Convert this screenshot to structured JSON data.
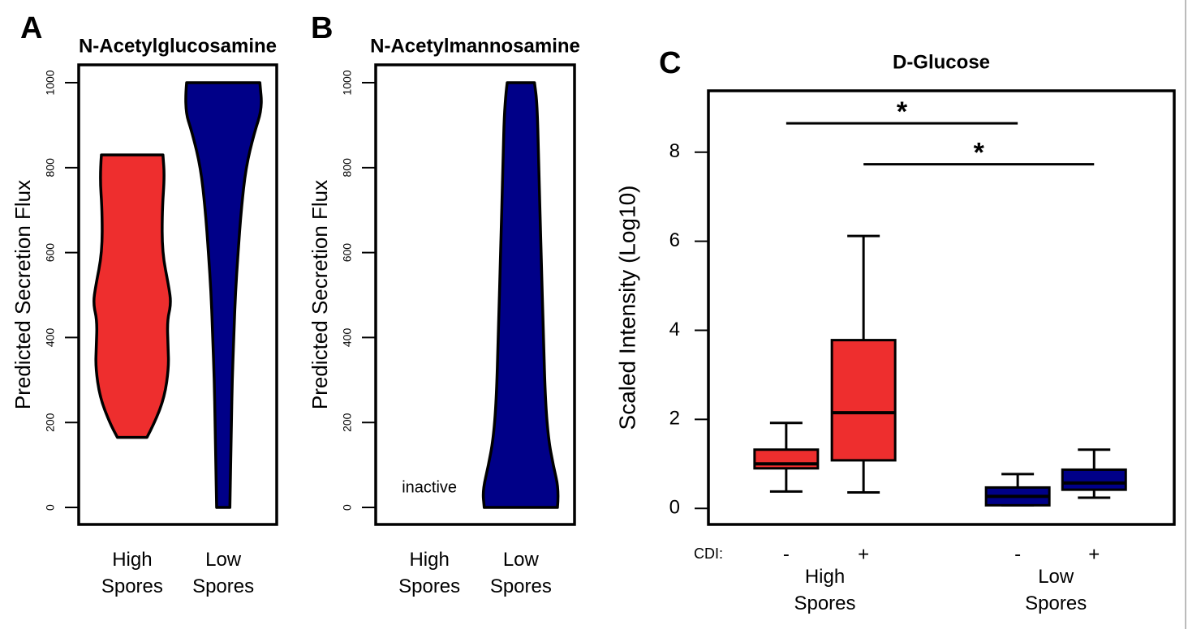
{
  "panel_labels": [
    "A",
    "B",
    "C"
  ],
  "chart_data": [
    {
      "type": "violin",
      "title": "N-Acetylglucosamine",
      "ylabel": "Predicted Secretion Flux",
      "ylim": [
        -40,
        1042
      ],
      "yticks": [
        0,
        200,
        400,
        600,
        800,
        1000
      ],
      "categories": [
        "High Spores",
        "Low Spores"
      ],
      "violins": [
        {
          "color": "#ee2e2e",
          "profile_y": [
            165,
            200,
            260,
            330,
            380,
            440,
            480,
            520,
            600,
            700,
            780,
            830
          ],
          "profile_width": [
            0.38,
            0.58,
            0.83,
            0.94,
            0.92,
            0.9,
            1,
            0.94,
            0.77,
            0.77,
            0.83,
            0.79
          ]
        },
        {
          "color": "#000088",
          "profile_y": [
            0,
            100,
            200,
            300,
            400,
            500,
            600,
            700,
            800,
            880,
            940,
            1000
          ],
          "profile_width": [
            0.17,
            0.19,
            0.21,
            0.23,
            0.27,
            0.31,
            0.38,
            0.46,
            0.58,
            0.79,
            1,
            0.94
          ]
        }
      ]
    },
    {
      "type": "violin",
      "title": "N-Acetylmannosamine",
      "ylabel": "Predicted Secretion Flux",
      "ylim": [
        -40,
        1042
      ],
      "yticks": [
        0,
        200,
        400,
        600,
        800,
        1000
      ],
      "categories": [
        "High Spores",
        "Low Spores"
      ],
      "violins": [
        {
          "label": "inactive"
        },
        {
          "color": "#000088",
          "profile_y": [
            0,
            40,
            100,
            160,
            250,
            400,
            600,
            800,
            950,
            1000
          ],
          "profile_width": [
            0.94,
            0.98,
            0.83,
            0.71,
            0.63,
            0.58,
            0.52,
            0.46,
            0.42,
            0.35
          ]
        }
      ]
    },
    {
      "type": "box",
      "title": "D-Glucose",
      "ylabel": "Scaled Intensity (Log10)",
      "xlabel": "CDI:",
      "ylim": [
        -0.36,
        9.38
      ],
      "yticks": [
        0,
        2,
        4,
        6,
        8
      ],
      "categories": [
        "-",
        "+",
        "-",
        "+"
      ],
      "groups": [
        "High Spores",
        "Low Spores"
      ],
      "boxes": [
        {
          "color": "#ee2e2e",
          "min": 0.38,
          "q1": 0.9,
          "median": 1.0,
          "q3": 1.32,
          "max": 1.92
        },
        {
          "color": "#ee2e2e",
          "min": 0.36,
          "q1": 1.08,
          "median": 2.15,
          "q3": 3.78,
          "max": 6.12
        },
        {
          "color": "#000088",
          "min": 0.07,
          "q1": 0.07,
          "median": 0.27,
          "q3": 0.47,
          "max": 0.77
        },
        {
          "color": "#000088",
          "min": 0.24,
          "q1": 0.42,
          "median": 0.57,
          "q3": 0.87,
          "max": 1.32
        }
      ],
      "annotations": [
        {
          "from": 0,
          "to": 2,
          "y": 8.65,
          "label": "*"
        },
        {
          "from": 1,
          "to": 3,
          "y": 7.73,
          "label": "*"
        }
      ]
    }
  ]
}
